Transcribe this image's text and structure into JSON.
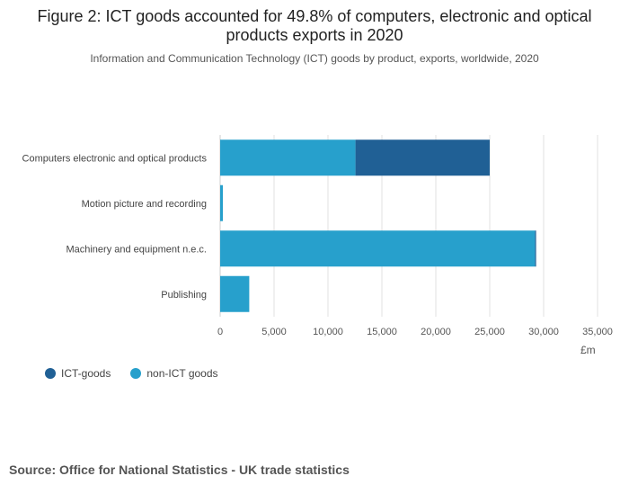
{
  "chart_data": {
    "type": "bar",
    "orientation": "horizontal",
    "stacked": true,
    "title": "Figure 2: ICT goods accounted for 49.8% of computers, electronic and optical products exports in 2020",
    "subtitle": "Information and Communication Technology (ICT) goods by product, exports, worldwide, 2020",
    "categories": [
      "Computers electronic and optical products",
      "Motion picture and recording",
      "Machinery and equipment n.e.c.",
      "Publishing"
    ],
    "series": [
      {
        "name": "non-ICT goods",
        "color": "#27a0cc",
        "values": [
          12550,
          250,
          29200,
          2700
        ]
      },
      {
        "name": "ICT-goods",
        "color": "#206095",
        "values": [
          12450,
          0,
          100,
          0
        ]
      }
    ],
    "xlim": [
      0,
      35000
    ],
    "xticks": [
      0,
      5000,
      10000,
      15000,
      20000,
      25000,
      30000,
      35000
    ],
    "xtick_labels": [
      "0",
      "5,000",
      "10,000",
      "15,000",
      "20,000",
      "25,000",
      "30,000",
      "35,000"
    ],
    "xlabel": "£m",
    "legend": [
      {
        "label": "ICT-goods",
        "color": "#206095"
      },
      {
        "label": "non-ICT goods",
        "color": "#27a0cc"
      }
    ],
    "grid": true
  },
  "source": "Source: Office for National Statistics - UK trade statistics"
}
